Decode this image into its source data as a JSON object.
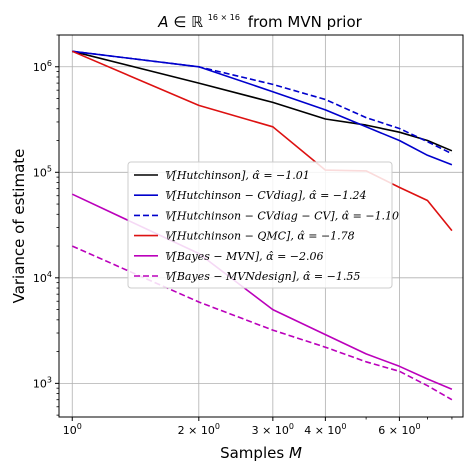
{
  "chart_data": {
    "type": "line",
    "title": "A ∈ ℝ^{16×16} from MVN prior",
    "title_parts": {
      "a": "A",
      "in": "∈",
      "R": "ℝ",
      "exp": "16 × 16",
      "rest": "from MVN prior"
    },
    "xlabel": "Samples M",
    "xlabel_parts": {
      "text": "Samples",
      "var": "M"
    },
    "ylabel": "Variance of estimate",
    "x_scale": "log",
    "y_scale": "log",
    "xlim": [
      0.93,
      8.5
    ],
    "ylim": [
      480,
      2000000
    ],
    "grid": true,
    "legend_position": "center-left",
    "x_ticks": [
      {
        "value": 1,
        "base": "10",
        "exp": "0",
        "mult": ""
      },
      {
        "value": 2,
        "base": "10",
        "exp": "0",
        "mult": "2 × "
      },
      {
        "value": 3,
        "base": "10",
        "exp": "0",
        "mult": "3 × "
      },
      {
        "value": 4,
        "base": "10",
        "exp": "0",
        "mult": "4 × "
      },
      {
        "value": 6,
        "base": "10",
        "exp": "0",
        "mult": "6 × "
      }
    ],
    "y_ticks": [
      {
        "value": 1000,
        "base": "10",
        "exp": "3"
      },
      {
        "value": 10000,
        "base": "10",
        "exp": "4"
      },
      {
        "value": 100000,
        "base": "10",
        "exp": "5"
      },
      {
        "value": 1000000,
        "base": "10",
        "exp": "6"
      }
    ],
    "x": [
      1,
      2,
      3,
      4,
      5,
      6,
      7,
      8
    ],
    "series": [
      {
        "name": "𝕍[Hutchinson], α̂ = −1.01",
        "color": "#000000",
        "dash": "solid",
        "values": [
          1400000,
          700000,
          460000,
          320000,
          280000,
          240000,
          200000,
          160000
        ]
      },
      {
        "name": "𝕍[Hutchinson − CVdiag], α̂ = −1.24",
        "color": "#0000cc",
        "dash": "solid",
        "values": [
          1400000,
          1000000,
          580000,
          390000,
          270000,
          200000,
          145000,
          118000
        ]
      },
      {
        "name": "𝕍[Hutchinson − CVdiag − CV], α̂ = −1.10",
        "color": "#0000cc",
        "dash": "dashed",
        "values": [
          1400000,
          1000000,
          680000,
          490000,
          330000,
          260000,
          195000,
          150000
        ]
      },
      {
        "name": "𝕍[Hutchinson − QMC], α̂ = −1.78",
        "color": "#dd1111",
        "dash": "solid",
        "values": [
          1400000,
          430000,
          270000,
          105000,
          103000,
          72000,
          54000,
          28000
        ]
      },
      {
        "name": "𝕍[Bayes − MVN], α̂ = −2.06",
        "color": "#bb00bb",
        "dash": "solid",
        "values": [
          62000,
          17000,
          5000,
          2900,
          1900,
          1450,
          1100,
          880
        ]
      },
      {
        "name": "𝕍[Bayes − MVNdesign], α̂ = −1.55",
        "color": "#bb00bb",
        "dash": "dashed",
        "values": [
          20000,
          5900,
          3200,
          2200,
          1600,
          1300,
          950,
          700
        ]
      }
    ]
  }
}
